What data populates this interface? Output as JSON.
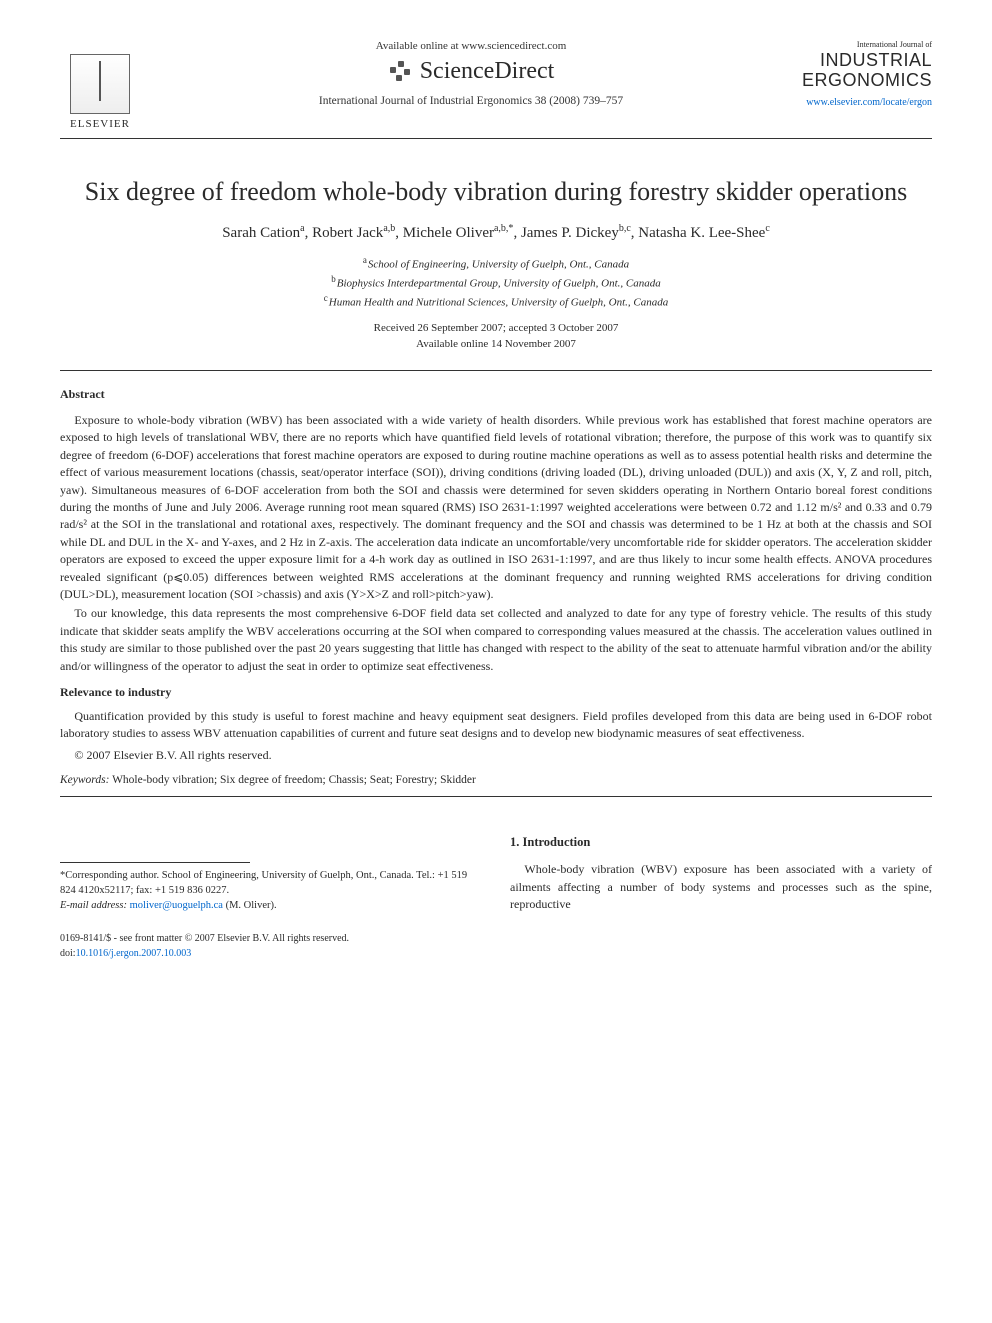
{
  "header": {
    "available_online": "Available online at www.sciencedirect.com",
    "sciencedirect": "ScienceDirect",
    "journal_ref": "International Journal of Industrial Ergonomics 38 (2008) 739–757",
    "elsevier_label": "ELSEVIER",
    "journal_small": "International Journal of",
    "journal_big_line1": "INDUSTRIAL",
    "journal_big_line2": "ERGONOMICS",
    "journal_url": "www.elsevier.com/locate/ergon"
  },
  "title": "Six degree of freedom whole-body vibration during forestry skidder operations",
  "authors_html": "Sarah Cation<sup>a</sup>, Robert Jack<sup>a,b</sup>, Michele Oliver<sup>a,b,*</sup>, James P. Dickey<sup>b,c</sup>, Natasha K. Lee-Shee<sup>c</sup>",
  "affiliations": {
    "a": "School of Engineering, University of Guelph, Ont., Canada",
    "b": "Biophysics Interdepartmental Group, University of Guelph, Ont., Canada",
    "c": "Human Health and Nutritional Sciences, University of Guelph, Ont., Canada"
  },
  "dates": {
    "received": "Received 26 September 2007; accepted 3 October 2007",
    "online": "Available online 14 November 2007"
  },
  "abstract_heading": "Abstract",
  "abstract_p1": "Exposure to whole-body vibration (WBV) has been associated with a wide variety of health disorders. While previous work has established that forest machine operators are exposed to high levels of translational WBV, there are no reports which have quantified field levels of rotational vibration; therefore, the purpose of this work was to quantify six degree of freedom (6-DOF) accelerations that forest machine operators are exposed to during routine machine operations as well as to assess potential health risks and determine the effect of various measurement locations (chassis, seat/operator interface (SOI)), driving conditions (driving loaded (DL), driving unloaded (DUL)) and axis (X, Y, Z and roll, pitch, yaw). Simultaneous measures of 6-DOF acceleration from both the SOI and chassis were determined for seven skidders operating in Northern Ontario boreal forest conditions during the months of June and July 2006. Average running root mean squared (RMS) ISO 2631-1:1997 weighted accelerations were between 0.72 and 1.12 m/s² and 0.33 and 0.79 rad/s² at the SOI in the translational and rotational axes, respectively. The dominant frequency and the SOI and chassis was determined to be 1 Hz at both at the chassis and SOI while DL and DUL in the X- and Y-axes, and 2 Hz in Z-axis. The acceleration data indicate an uncomfortable/very uncomfortable ride for skidder operators. The acceleration skidder operators are exposed to exceed the upper exposure limit for a 4-h work day as outlined in ISO 2631-1:1997, and are thus likely to incur some health effects. ANOVA procedures revealed significant (p⩽0.05) differences between weighted RMS accelerations at the dominant frequency and running weighted RMS accelerations for driving condition (DUL>DL), measurement location (SOI >chassis) and axis (Y>X>Z and roll>pitch>yaw).",
  "abstract_p2": "To our knowledge, this data represents the most comprehensive 6-DOF field data set collected and analyzed to date for any type of forestry vehicle. The results of this study indicate that skidder seats amplify the WBV accelerations occurring at the SOI when compared to corresponding values measured at the chassis. The acceleration values outlined in this study are similar to those published over the past 20 years suggesting that little has changed with respect to the ability of the seat to attenuate harmful vibration and/or the ability and/or willingness of the operator to adjust the seat in order to optimize seat effectiveness.",
  "relevance_heading": "Relevance to industry",
  "relevance_text": "Quantification provided by this study is useful to forest machine and heavy equipment seat designers. Field profiles developed from this data are being used in 6-DOF robot laboratory studies to assess WBV attenuation capabilities of current and future seat designs and to develop new biodynamic measures of seat effectiveness.",
  "copyright": "© 2007 Elsevier B.V. All rights reserved.",
  "keywords_label": "Keywords:",
  "keywords_text": " Whole-body vibration; Six degree of freedom; Chassis; Seat; Forestry; Skidder",
  "footnote": {
    "corr": "*Corresponding author. School of Engineering, University of Guelph, Ont., Canada. Tel.: +1 519 824 4120x52117; fax: +1 519 836 0227.",
    "email_label": "E-mail address: ",
    "email": "moliver@uoguelph.ca",
    "email_tail": " (M. Oliver)."
  },
  "intro": {
    "heading": "1. Introduction",
    "text": "Whole-body vibration (WBV) exposure has been associated with a variety of ailments affecting a number of body systems and processes such as the spine, reproductive"
  },
  "footer": {
    "issn": "0169-8141/$ - see front matter © 2007 Elsevier B.V. All rights reserved.",
    "doi_label": "doi:",
    "doi": "10.1016/j.ergon.2007.10.003"
  }
}
